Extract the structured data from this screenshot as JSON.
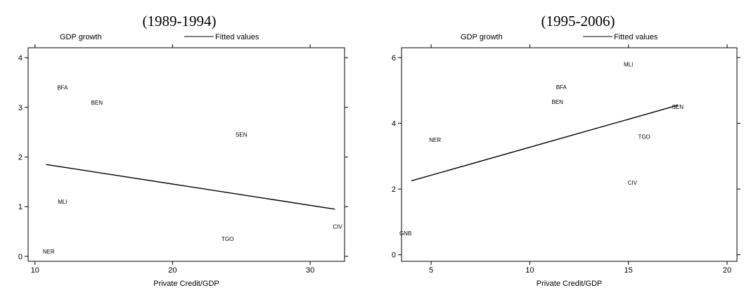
{
  "chart_data": [
    {
      "type": "scatter",
      "title": "(1989-1994)",
      "legend": {
        "series": [
          "GDP growth",
          "Fitted values"
        ],
        "placement": "top"
      },
      "xlabel": "Private Credit/GDP",
      "ylabel": "",
      "xlim": [
        9.5,
        32.5
      ],
      "ylim": [
        -0.1,
        4.2
      ],
      "xticks": [
        10,
        20,
        30
      ],
      "yticks": [
        0,
        1,
        2,
        3,
        4
      ],
      "points": [
        {
          "label": "BFA",
          "x": 12,
          "y": 3.4
        },
        {
          "label": "BEN",
          "x": 14.5,
          "y": 3.1
        },
        {
          "label": "SEN",
          "x": 25,
          "y": 2.45
        },
        {
          "label": "MLI",
          "x": 12,
          "y": 1.1
        },
        {
          "label": "NER",
          "x": 11,
          "y": 0.1
        },
        {
          "label": "TGO",
          "x": 24,
          "y": 0.35
        },
        {
          "label": "CIV",
          "x": 32,
          "y": 0.6
        }
      ],
      "fitted_line": {
        "x": [
          10.8,
          31.8
        ],
        "y": [
          1.85,
          0.95
        ]
      },
      "grid": false
    },
    {
      "type": "scatter",
      "title": "(1995-2006)",
      "legend": {
        "series": [
          "GDP growth",
          "Fitted values"
        ],
        "placement": "top"
      },
      "xlabel": "Private Credit/GDP",
      "ylabel": "",
      "xlim": [
        3.5,
        20.5
      ],
      "ylim": [
        -0.2,
        6.3
      ],
      "xticks": [
        5,
        10,
        15,
        20
      ],
      "yticks": [
        0,
        2,
        4,
        6
      ],
      "points": [
        {
          "label": "MLI",
          "x": 15,
          "y": 5.8
        },
        {
          "label": "BFA",
          "x": 11.6,
          "y": 5.1
        },
        {
          "label": "BEN",
          "x": 11.4,
          "y": 4.65
        },
        {
          "label": "SEN",
          "x": 17.5,
          "y": 4.5
        },
        {
          "label": "NER",
          "x": 5.2,
          "y": 3.5
        },
        {
          "label": "TGO",
          "x": 15.8,
          "y": 3.6
        },
        {
          "label": "CIV",
          "x": 15.2,
          "y": 2.2
        },
        {
          "label": "GNB",
          "x": 3.7,
          "y": 0.65
        }
      ],
      "fitted_line": {
        "x": [
          4,
          17.5
        ],
        "y": [
          2.25,
          4.55
        ]
      },
      "grid": false
    }
  ]
}
